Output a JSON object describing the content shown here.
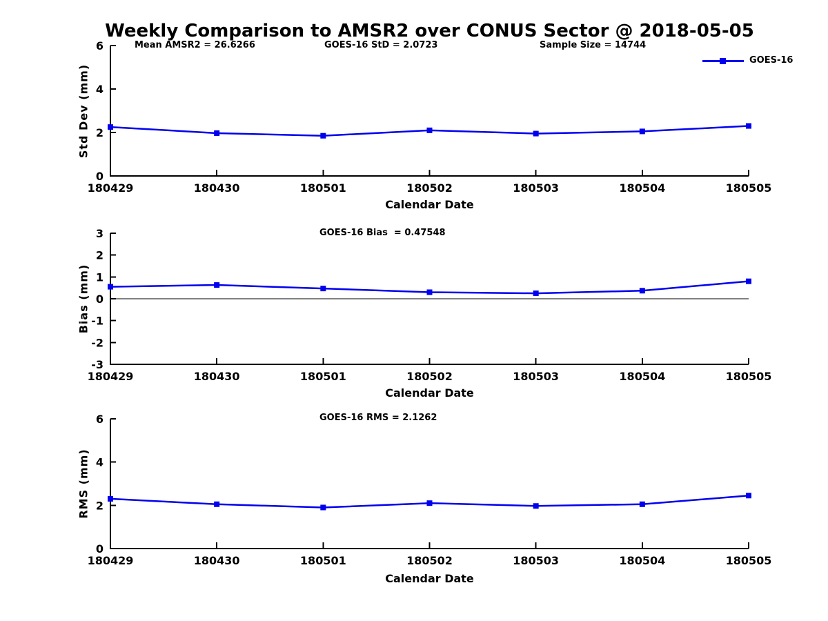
{
  "page_title": "Weekly Comparison to AMSR2 over CONUS Sector @ 2018-05-05",
  "colors": {
    "line": "#0000EE",
    "axis": "#000000",
    "background": "#FFFFFF"
  },
  "legend": {
    "label": "GOES-16",
    "position": "top-right",
    "marker": "filled-square"
  },
  "chart_data": [
    {
      "type": "line",
      "title": "",
      "series_name": "GOES-16",
      "ylabel": "Std Dev (mm)",
      "xlabel": "Calendar Date",
      "categories": [
        "180429",
        "180430",
        "180501",
        "180502",
        "180503",
        "180504",
        "180505"
      ],
      "values": [
        2.25,
        1.97,
        1.85,
        2.1,
        1.95,
        2.05,
        2.3
      ],
      "ylim": [
        0,
        6
      ],
      "yticks": [
        0,
        2,
        4,
        6
      ],
      "grid": false,
      "zero_line": false,
      "annotations": [
        {
          "text": "Mean AMSR2 = 26.6266"
        },
        {
          "text": "GOES-16 StD = 2.0723"
        },
        {
          "text": "Sample Size = 14744"
        }
      ]
    },
    {
      "type": "line",
      "title": "",
      "series_name": "GOES-16",
      "ylabel": "Bias (mm)",
      "xlabel": "Calendar Date",
      "categories": [
        "180429",
        "180430",
        "180501",
        "180502",
        "180503",
        "180504",
        "180505"
      ],
      "values": [
        0.55,
        0.63,
        0.47,
        0.3,
        0.25,
        0.37,
        0.8
      ],
      "ylim": [
        -3,
        3
      ],
      "yticks": [
        3,
        2,
        1,
        0,
        -1,
        -2,
        -3
      ],
      "grid": false,
      "zero_line": true,
      "annotations": [
        {
          "text": "GOES-16 Bias  = 0.47548"
        }
      ]
    },
    {
      "type": "line",
      "title": "",
      "series_name": "GOES-16",
      "ylabel": "RMS (mm)",
      "xlabel": "Calendar Date",
      "categories": [
        "180429",
        "180430",
        "180501",
        "180502",
        "180503",
        "180504",
        "180505"
      ],
      "values": [
        2.3,
        2.05,
        1.9,
        2.1,
        1.97,
        2.05,
        2.45
      ],
      "ylim": [
        0,
        6
      ],
      "yticks": [
        0,
        2,
        4,
        6
      ],
      "grid": false,
      "zero_line": false,
      "annotations": [
        {
          "text": "GOES-16 RMS = 2.1262"
        }
      ]
    }
  ]
}
